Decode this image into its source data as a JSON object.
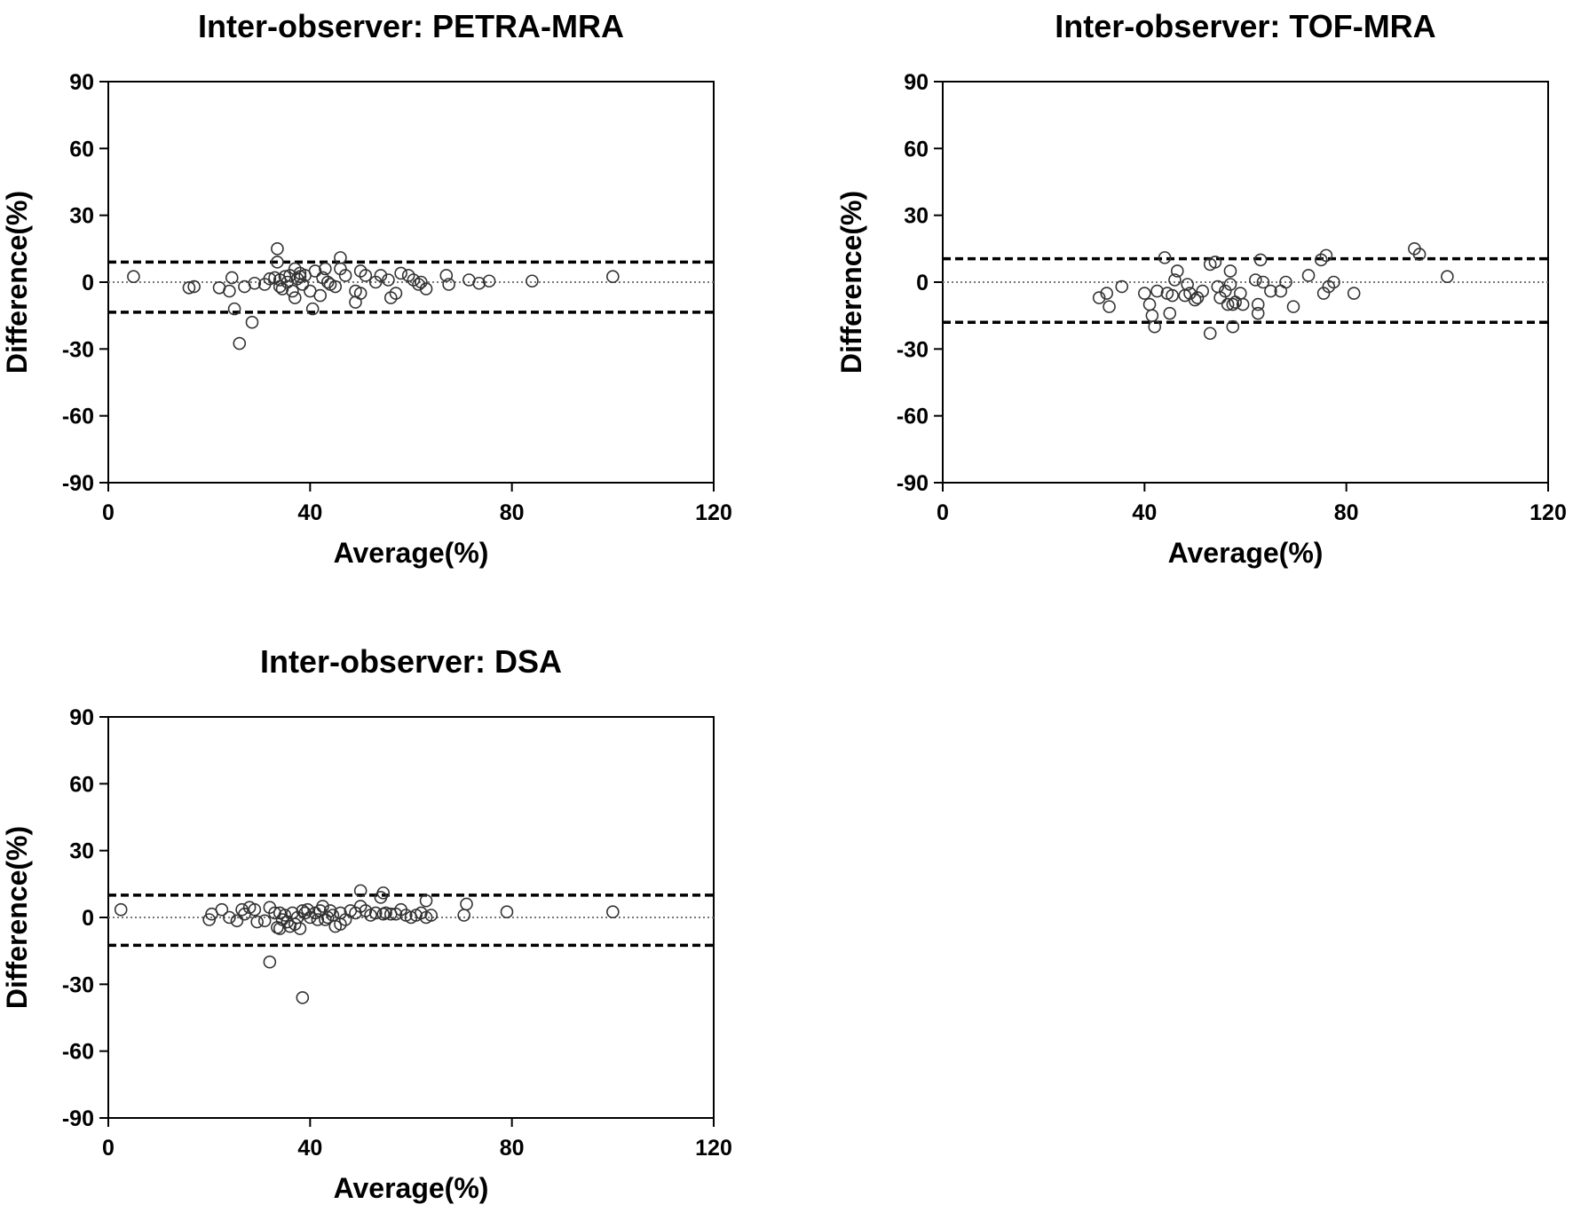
{
  "chart_data": [
    {
      "type": "scatter",
      "title": "Inter-observer: PETRA-MRA",
      "xlabel": "Average(%)",
      "ylabel": "Difference(%)",
      "xlim": [
        0,
        120
      ],
      "ylim": [
        -90,
        90
      ],
      "xticks": [
        0,
        40,
        80,
        120
      ],
      "yticks": [
        90,
        60,
        30,
        0,
        -30,
        -60,
        -90
      ],
      "mean_line": 0,
      "limits_of_agreement": [
        9,
        -13.5
      ],
      "points": [
        [
          5,
          2.5
        ],
        [
          16,
          -2.5
        ],
        [
          17,
          -2
        ],
        [
          22,
          -2.5
        ],
        [
          24,
          -4
        ],
        [
          24.5,
          2
        ],
        [
          25,
          -12
        ],
        [
          26,
          -27.5
        ],
        [
          27,
          -2
        ],
        [
          28.5,
          -18
        ],
        [
          29,
          -0.5
        ],
        [
          31,
          -1
        ],
        [
          32,
          1.5
        ],
        [
          33,
          2
        ],
        [
          33.5,
          9
        ],
        [
          33.5,
          15
        ],
        [
          34,
          1
        ],
        [
          34,
          -2
        ],
        [
          34.5,
          -3
        ],
        [
          35,
          2.5
        ],
        [
          35.5,
          0
        ],
        [
          36,
          3
        ],
        [
          36.5,
          -4
        ],
        [
          37,
          6
        ],
        [
          37,
          -7
        ],
        [
          37.5,
          1.5
        ],
        [
          38,
          2.5
        ],
        [
          38,
          4
        ],
        [
          38.5,
          -1
        ],
        [
          39,
          3
        ],
        [
          40,
          -4
        ],
        [
          40.5,
          -12
        ],
        [
          41,
          5
        ],
        [
          42,
          -6
        ],
        [
          42.5,
          2
        ],
        [
          43,
          6
        ],
        [
          43.5,
          0
        ],
        [
          44,
          -1
        ],
        [
          45,
          -2
        ],
        [
          46,
          11
        ],
        [
          46,
          6
        ],
        [
          47,
          3
        ],
        [
          49,
          -9
        ],
        [
          49,
          -4
        ],
        [
          50,
          -5
        ],
        [
          50,
          5
        ],
        [
          51,
          3
        ],
        [
          53,
          0
        ],
        [
          54,
          3
        ],
        [
          55.5,
          1
        ],
        [
          56,
          -7
        ],
        [
          57,
          -5
        ],
        [
          58,
          4
        ],
        [
          59.5,
          3
        ],
        [
          60.5,
          1
        ],
        [
          61.5,
          -1
        ],
        [
          62,
          0
        ],
        [
          63,
          -3
        ],
        [
          67,
          3
        ],
        [
          67.5,
          -1
        ],
        [
          71.5,
          1
        ],
        [
          73.5,
          -0.5
        ],
        [
          75.5,
          0.5
        ],
        [
          84,
          0.5
        ],
        [
          100,
          2.5
        ]
      ]
    },
    {
      "type": "scatter",
      "title": "Inter-observer: TOF-MRA",
      "xlabel": "Average(%)",
      "ylabel": "Difference(%)",
      "xlim": [
        0,
        120
      ],
      "ylim": [
        -90,
        90
      ],
      "xticks": [
        0,
        40,
        80,
        120
      ],
      "yticks": [
        90,
        60,
        30,
        0,
        -30,
        -60,
        -90
      ],
      "mean_line": 0,
      "limits_of_agreement": [
        10.5,
        -18
      ],
      "points": [
        [
          31,
          -7
        ],
        [
          32.5,
          -5
        ],
        [
          33,
          -11
        ],
        [
          35.5,
          -2
        ],
        [
          40,
          -5
        ],
        [
          41,
          -10
        ],
        [
          41.5,
          -15
        ],
        [
          42,
          -20
        ],
        [
          42.5,
          -4
        ],
        [
          44,
          11
        ],
        [
          44.5,
          -5
        ],
        [
          45,
          -14
        ],
        [
          45.5,
          -6
        ],
        [
          46,
          1
        ],
        [
          46.5,
          5
        ],
        [
          48,
          -6
        ],
        [
          48.5,
          -1
        ],
        [
          49,
          -5
        ],
        [
          50,
          -8
        ],
        [
          50.5,
          -7
        ],
        [
          51.5,
          -4
        ],
        [
          53,
          -23
        ],
        [
          53,
          8
        ],
        [
          54,
          9
        ],
        [
          54.5,
          -2
        ],
        [
          55,
          -7
        ],
        [
          56,
          -4
        ],
        [
          56.5,
          -10
        ],
        [
          57,
          5
        ],
        [
          57,
          -1
        ],
        [
          57.5,
          -10
        ],
        [
          57.5,
          -20
        ],
        [
          58,
          -9
        ],
        [
          59,
          -5
        ],
        [
          59.5,
          -10
        ],
        [
          62,
          1
        ],
        [
          62.5,
          -10
        ],
        [
          62.5,
          -14
        ],
        [
          63,
          10
        ],
        [
          63.5,
          0
        ],
        [
          65,
          -4
        ],
        [
          67,
          -4
        ],
        [
          68,
          0
        ],
        [
          69.5,
          -11
        ],
        [
          72.5,
          3
        ],
        [
          75,
          10
        ],
        [
          75.5,
          -5
        ],
        [
          76,
          12
        ],
        [
          76.5,
          -2
        ],
        [
          77.5,
          0
        ],
        [
          81.5,
          -5
        ],
        [
          93.5,
          15
        ],
        [
          94.5,
          12.5
        ],
        [
          100,
          2.5
        ]
      ]
    },
    {
      "type": "scatter",
      "title": "Inter-observer: DSA",
      "xlabel": "Average(%)",
      "ylabel": "Difference(%)",
      "xlim": [
        0,
        120
      ],
      "ylim": [
        -90,
        90
      ],
      "xticks": [
        0,
        40,
        80,
        120
      ],
      "yticks": [
        90,
        60,
        30,
        0,
        -30,
        -60,
        -90
      ],
      "mean_line": 0,
      "limits_of_agreement": [
        10,
        -12.5
      ],
      "points": [
        [
          2.5,
          3.5
        ],
        [
          20,
          -1
        ],
        [
          20.5,
          1.5
        ],
        [
          22.5,
          3.5
        ],
        [
          24,
          0
        ],
        [
          25.5,
          -1.5
        ],
        [
          26.5,
          3.5
        ],
        [
          27,
          1.5
        ],
        [
          28,
          4.5
        ],
        [
          29,
          3.5
        ],
        [
          29.5,
          -2
        ],
        [
          31,
          -1.5
        ],
        [
          32,
          -20
        ],
        [
          32,
          4.5
        ],
        [
          33,
          2
        ],
        [
          33.5,
          -4.5
        ],
        [
          34,
          2
        ],
        [
          34,
          -5
        ],
        [
          34.5,
          -1
        ],
        [
          35,
          1
        ],
        [
          35.5,
          -2
        ],
        [
          36,
          -4
        ],
        [
          36.5,
          2
        ],
        [
          37,
          -3
        ],
        [
          37.5,
          0
        ],
        [
          38,
          -5
        ],
        [
          38.5,
          -36
        ],
        [
          38.5,
          3
        ],
        [
          39,
          2
        ],
        [
          39.5,
          3.5
        ],
        [
          40,
          0
        ],
        [
          41,
          2
        ],
        [
          41.5,
          -1
        ],
        [
          42,
          3
        ],
        [
          42.5,
          5
        ],
        [
          43,
          -1
        ],
        [
          43.5,
          0
        ],
        [
          44,
          3
        ],
        [
          44.5,
          1
        ],
        [
          45,
          -4
        ],
        [
          46,
          -3
        ],
        [
          46,
          2
        ],
        [
          47,
          -1
        ],
        [
          48,
          3
        ],
        [
          49,
          2
        ],
        [
          50,
          5
        ],
        [
          50,
          12
        ],
        [
          51,
          3
        ],
        [
          52,
          1
        ],
        [
          53,
          2
        ],
        [
          54,
          9
        ],
        [
          54.5,
          11
        ],
        [
          54.5,
          1.5
        ],
        [
          55,
          2
        ],
        [
          56,
          1.5
        ],
        [
          57,
          1.5
        ],
        [
          58,
          3.5
        ],
        [
          59,
          1
        ],
        [
          60,
          0
        ],
        [
          61,
          1
        ],
        [
          62,
          2
        ],
        [
          63,
          7.5
        ],
        [
          63,
          0
        ],
        [
          64,
          1
        ],
        [
          70.5,
          1
        ],
        [
          71,
          6
        ],
        [
          79,
          2.5
        ],
        [
          100,
          2.5
        ]
      ]
    }
  ]
}
